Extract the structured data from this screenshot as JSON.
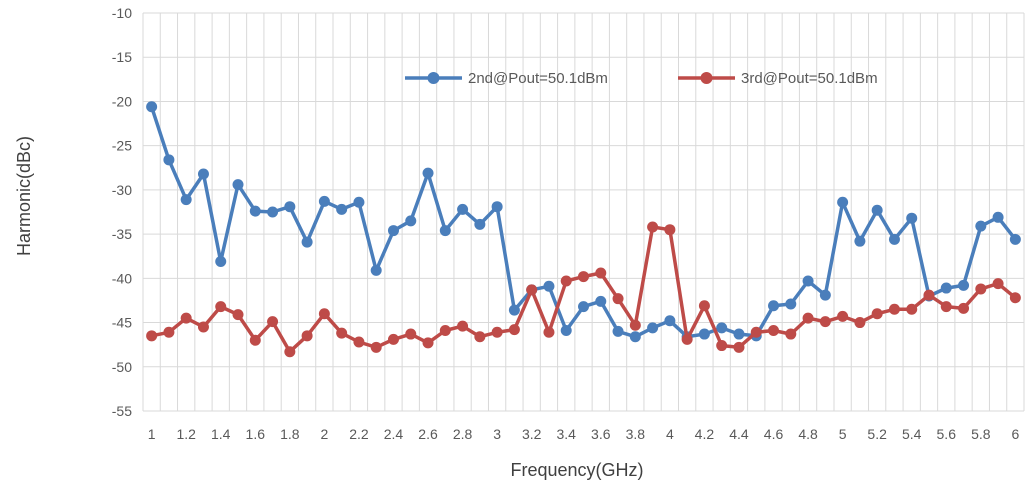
{
  "chart_data": {
    "type": "line",
    "title": "",
    "xlabel": "Frequency(GHz)",
    "ylabel": "Harmonic(dBc)",
    "ylim": [
      -55,
      -10
    ],
    "y_ticks": [
      "-10",
      "-15",
      "-20",
      "-25",
      "-30",
      "-35",
      "-40",
      "-45",
      "-50",
      "-55"
    ],
    "x_tick_labels": [
      "1",
      "1.2",
      "1.4",
      "1.6",
      "1.8",
      "2",
      "2.2",
      "2.4",
      "2.6",
      "2.8",
      "3",
      "3.2",
      "3.4",
      "3.6",
      "3.8",
      "4",
      "4.2",
      "4.4",
      "4.6",
      "4.8",
      "5",
      "5.2",
      "5.4",
      "5.6",
      "5.8",
      "6"
    ],
    "x": [
      1.0,
      1.1,
      1.2,
      1.3,
      1.4,
      1.5,
      1.6,
      1.7,
      1.8,
      1.9,
      2.0,
      2.1,
      2.2,
      2.3,
      2.4,
      2.5,
      2.6,
      2.7,
      2.8,
      2.9,
      3.0,
      3.1,
      3.2,
      3.3,
      3.4,
      3.5,
      3.6,
      3.7,
      3.8,
      3.9,
      4.0,
      4.1,
      4.2,
      4.3,
      4.4,
      4.5,
      4.6,
      4.7,
      4.8,
      4.9,
      5.0,
      5.1,
      5.2,
      5.3,
      5.4,
      5.5,
      5.6,
      5.7,
      5.8,
      5.9,
      6.0
    ],
    "grid": true,
    "legend_position": "top-right",
    "series": [
      {
        "name": "2nd@Pout=50.1dBm",
        "color": "#4a7ebb",
        "values": [
          -20.6,
          -26.6,
          -31.1,
          -28.2,
          -38.1,
          -29.4,
          -32.4,
          -32.5,
          -31.9,
          -35.9,
          -31.3,
          -32.2,
          -31.4,
          -39.1,
          -34.6,
          -33.5,
          -28.1,
          -34.6,
          -32.2,
          -33.9,
          -31.9,
          -43.6,
          -41.3,
          -40.9,
          -45.9,
          -43.2,
          -42.6,
          -46.0,
          -46.6,
          -45.6,
          -44.8,
          -46.6,
          -46.3,
          -45.6,
          -46.3,
          -46.5,
          -43.1,
          -42.9,
          -40.3,
          -41.9,
          -31.4,
          -35.8,
          -32.3,
          -35.6,
          -33.2,
          -42.0,
          -41.1,
          -40.8,
          -34.1,
          -33.1,
          -35.6
        ]
      },
      {
        "name": "3rd@Pout=50.1dBm",
        "color": "#be4b48",
        "values": [
          -46.5,
          -46.1,
          -44.5,
          -45.5,
          -43.2,
          -44.1,
          -47.0,
          -44.9,
          -48.3,
          -46.5,
          -44.0,
          -46.2,
          -47.2,
          -47.8,
          -46.9,
          -46.3,
          -47.3,
          -45.9,
          -45.4,
          -46.6,
          -46.1,
          -45.8,
          -41.3,
          -46.1,
          -40.3,
          -39.8,
          -39.4,
          -42.3,
          -45.3,
          -34.2,
          -34.5,
          -46.9,
          -43.1,
          -47.6,
          -47.8,
          -46.1,
          -45.9,
          -46.3,
          -44.5,
          -44.9,
          -44.3,
          -45.0,
          -44.0,
          -43.5,
          -43.5,
          -41.9,
          -43.2,
          -43.4,
          -41.2,
          -40.6,
          -42.2
        ]
      }
    ]
  }
}
